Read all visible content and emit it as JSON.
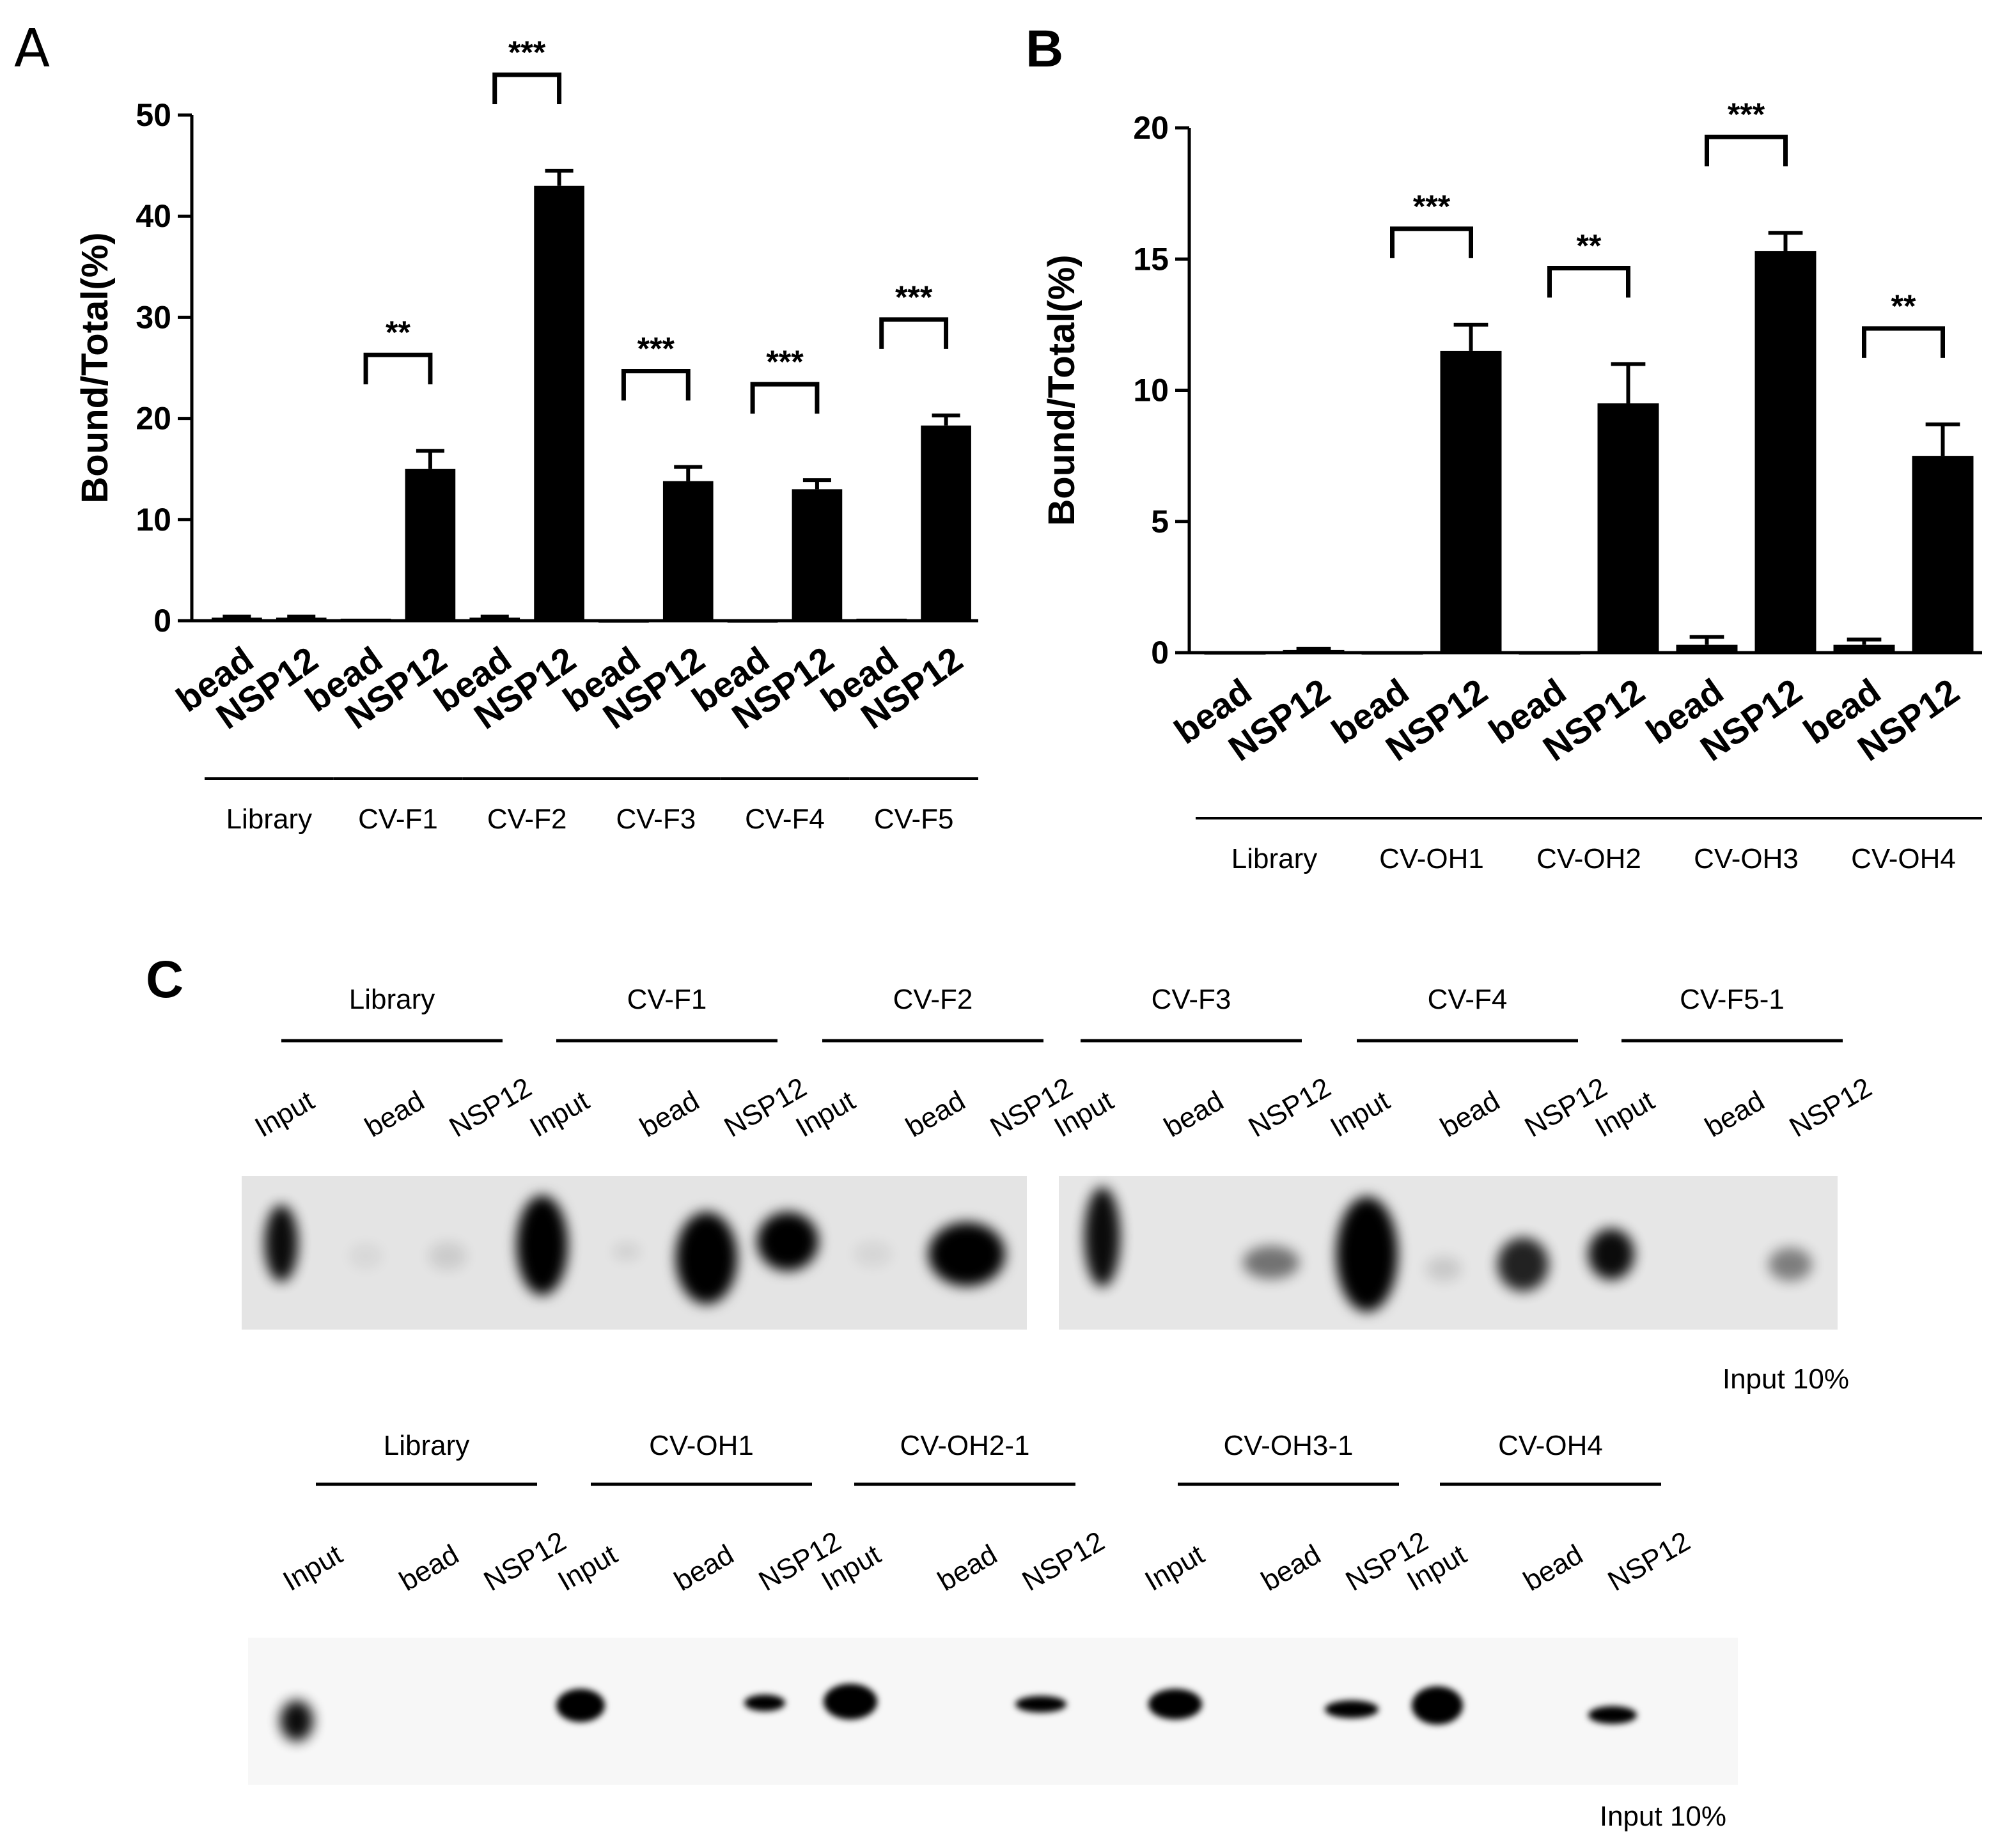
{
  "chart_data": [
    {
      "panel": "A",
      "type": "bar",
      "ylabel": "Bound/Total(%)",
      "ylim": [
        0,
        50
      ],
      "yticks": [
        0,
        10,
        20,
        30,
        40,
        50
      ],
      "categories": [
        "bead",
        "NSP12",
        "bead",
        "NSP12",
        "bead",
        "NSP12",
        "bead",
        "NSP12",
        "bead",
        "NSP12",
        "bead",
        "NSP12"
      ],
      "groups": [
        "Library",
        "CV-F1",
        "CV-F2",
        "CV-F3",
        "CV-F4",
        "CV-F5"
      ],
      "values": [
        0.3,
        0.3,
        0.2,
        15.0,
        0.3,
        43.0,
        0.0,
        13.8,
        0.0,
        13.0,
        0.2,
        19.3
      ],
      "errors": [
        0.1,
        0.1,
        0.0,
        1.8,
        0.1,
        1.5,
        0.0,
        1.4,
        0.0,
        0.9,
        0.0,
        1.0
      ],
      "significance": [
        {
          "pair": [
            2,
            3
          ],
          "label": "**"
        },
        {
          "pair": [
            4,
            5
          ],
          "label": "***"
        },
        {
          "pair": [
            6,
            7
          ],
          "label": "***"
        },
        {
          "pair": [
            8,
            9
          ],
          "label": "***"
        },
        {
          "pair": [
            10,
            11
          ],
          "label": "***"
        }
      ]
    },
    {
      "panel": "B",
      "type": "bar",
      "ylabel": "Bound/Total(%)",
      "ylim": [
        0,
        20
      ],
      "yticks": [
        0,
        5,
        10,
        15,
        20
      ],
      "categories": [
        "bead",
        "NSP12",
        "bead",
        "NSP12",
        "bead",
        "NSP12",
        "bead",
        "NSP12",
        "bead",
        "NSP12"
      ],
      "groups": [
        "Library",
        "CV-OH1",
        "CV-OH2",
        "CV-OH3",
        "CV-OH4"
      ],
      "values": [
        0.0,
        0.1,
        0.0,
        11.5,
        0.0,
        9.5,
        0.3,
        15.3,
        0.3,
        7.5
      ],
      "errors": [
        0.0,
        0.05,
        0.0,
        1.0,
        0.0,
        1.5,
        0.3,
        0.7,
        0.2,
        1.2
      ],
      "significance": [
        {
          "pair": [
            2,
            3
          ],
          "label": "***"
        },
        {
          "pair": [
            4,
            5
          ],
          "label": "**"
        },
        {
          "pair": [
            6,
            7
          ],
          "label": "***"
        },
        {
          "pair": [
            8,
            9
          ],
          "label": "**"
        }
      ]
    }
  ],
  "panels": {
    "a": "A",
    "b": "B",
    "c": "C"
  },
  "blots": {
    "top": {
      "groups": [
        "Library",
        "CV-F1",
        "CV-F2",
        "CV-F3",
        "CV-F4",
        "CV-F5-1"
      ],
      "lanes": [
        "Input",
        "bead",
        "NSP12"
      ],
      "note": "Input 10%"
    },
    "bottom": {
      "groups": [
        "Library",
        "CV-OH1",
        "CV-OH2-1",
        "CV-OH3-1",
        "CV-OH4"
      ],
      "lanes": [
        "Input",
        "bead",
        "NSP12"
      ],
      "note": "Input 10%"
    }
  }
}
